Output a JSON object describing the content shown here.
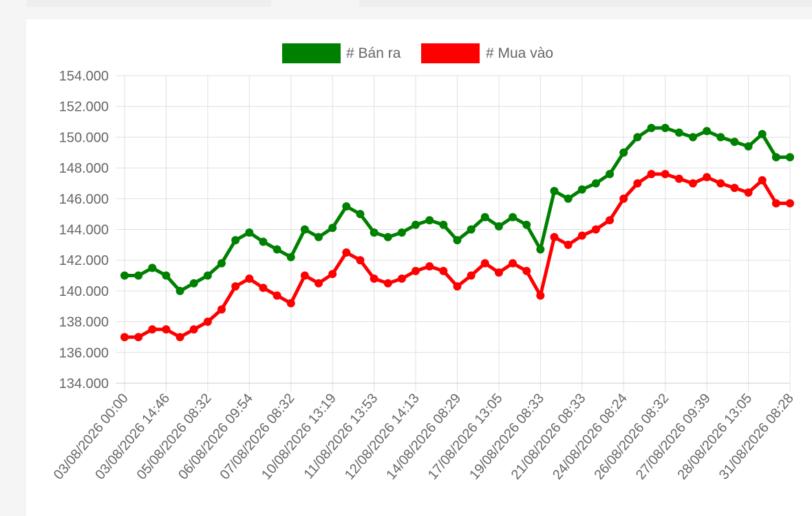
{
  "colors": {
    "sell": "#008000",
    "buy": "#ff0000",
    "grid": "#e0e0e0",
    "text": "#666666"
  },
  "chart_data": {
    "type": "line",
    "title": "",
    "xlabel": "",
    "ylabel": "",
    "ylim": [
      134000,
      154000
    ],
    "ytick_step": 2000,
    "y_ticks": [
      "134.000",
      "136.000",
      "138.000",
      "140.000",
      "142.000",
      "144.000",
      "146.000",
      "148.000",
      "150.000",
      "152.000",
      "154.000"
    ],
    "grid": true,
    "legend_position": "top-center",
    "x_tick_labels": [
      "03/08/2026 00:00",
      "03/08/2026 14:46",
      "05/08/2026 08:32",
      "06/08/2026 09:54",
      "07/08/2026 08:32",
      "10/08/2026 13:19",
      "11/08/2026 13:53",
      "12/08/2026 14:13",
      "14/08/2026 08:29",
      "17/08/2026 13:05",
      "19/08/2026 08:33",
      "21/08/2026 08:33",
      "24/08/2026 08:24",
      "26/08/2026 08:32",
      "27/08/2026 09:39",
      "28/08/2026 13:05",
      "31/08/2026 08:28"
    ],
    "point_count": 49,
    "series": [
      {
        "name": "# Bán ra",
        "color": "#008000",
        "values": [
          141000,
          141000,
          141500,
          141000,
          140000,
          140500,
          141000,
          141800,
          143300,
          143800,
          143200,
          142700,
          142200,
          144000,
          143500,
          144100,
          145500,
          145000,
          143800,
          143500,
          143800,
          144300,
          144600,
          144300,
          143300,
          144000,
          144800,
          144200,
          144800,
          144300,
          142700,
          146500,
          146000,
          146600,
          147000,
          147600,
          149000,
          150000,
          150600,
          150600,
          150300,
          150000,
          150400,
          150000,
          149700,
          149400,
          150200,
          148700,
          148700
        ]
      },
      {
        "name": "# Mua vào",
        "color": "#ff0000",
        "values": [
          137000,
          137000,
          137500,
          137500,
          137000,
          137500,
          138000,
          138800,
          140300,
          140800,
          140200,
          139700,
          139200,
          141000,
          140500,
          141100,
          142500,
          142000,
          140800,
          140500,
          140800,
          141300,
          141600,
          141300,
          140300,
          141000,
          141800,
          141200,
          141800,
          141300,
          139700,
          143500,
          143000,
          143600,
          144000,
          144600,
          146000,
          147000,
          147600,
          147600,
          147300,
          147000,
          147400,
          147000,
          146700,
          146400,
          147200,
          145700,
          145700
        ]
      }
    ]
  }
}
